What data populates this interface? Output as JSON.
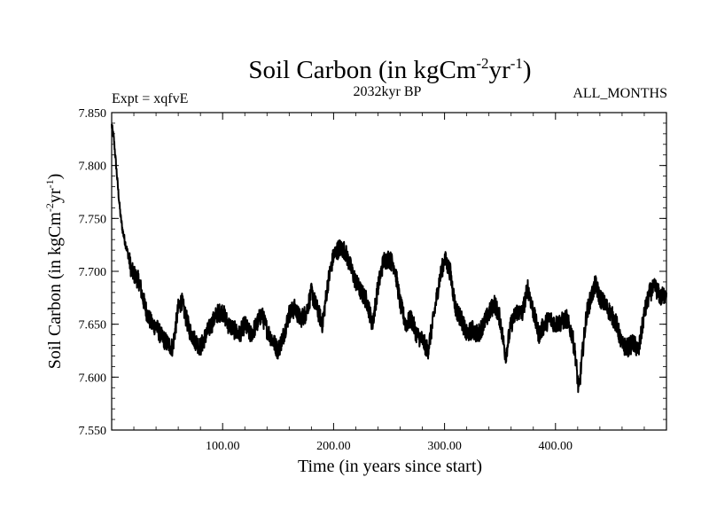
{
  "chart_data": {
    "type": "line",
    "title_main": "Soil Carbon (in kgCm",
    "title_exp1": "-2",
    "title_mid": "yr",
    "title_exp2": "-1",
    "title_close": ")",
    "subtitle_left": "Expt = xqfvE",
    "subtitle_center": "2032kyr BP",
    "subtitle_right": "ALL_MONTHS",
    "xlabel": "Time (in years since start)",
    "ylabel_main": "Soil Carbon (in kgCm",
    "ylabel_exp1": "-2",
    "ylabel_mid": "yr",
    "ylabel_exp2": "-1",
    "ylabel_close": ")",
    "xlim": [
      0,
      500
    ],
    "ylim": [
      7.55,
      7.85
    ],
    "xticks": [
      {
        "value": 100,
        "label": "100.00"
      },
      {
        "value": 200,
        "label": "200.00"
      },
      {
        "value": 300,
        "label": "300.00"
      },
      {
        "value": 400,
        "label": "400.00"
      }
    ],
    "yticks": [
      {
        "value": 7.55,
        "label": "7.550"
      },
      {
        "value": 7.6,
        "label": "7.600"
      },
      {
        "value": 7.65,
        "label": "7.650"
      },
      {
        "value": 7.7,
        "label": "7.700"
      },
      {
        "value": 7.75,
        "label": "7.750"
      },
      {
        "value": 7.8,
        "label": "7.800"
      },
      {
        "value": 7.85,
        "label": "7.850"
      }
    ],
    "series": [
      {
        "name": "Soil Carbon",
        "x": [
          0,
          2,
          4,
          6,
          8,
          10,
          12,
          15,
          18,
          21,
          25,
          28,
          32,
          36,
          40,
          45,
          50,
          55,
          60,
          63,
          66,
          70,
          75,
          80,
          85,
          90,
          95,
          100,
          105,
          110,
          115,
          120,
          125,
          130,
          135,
          140,
          145,
          150,
          155,
          160,
          165,
          170,
          175,
          180,
          185,
          190,
          195,
          200,
          205,
          210,
          215,
          220,
          225,
          230,
          235,
          240,
          245,
          250,
          255,
          260,
          265,
          270,
          275,
          280,
          285,
          290,
          295,
          300,
          305,
          310,
          315,
          320,
          325,
          330,
          335,
          340,
          345,
          350,
          355,
          360,
          365,
          370,
          375,
          380,
          385,
          390,
          395,
          400,
          405,
          410,
          415,
          418,
          421,
          424,
          428,
          432,
          436,
          440,
          445,
          450,
          455,
          460,
          465,
          470,
          475,
          480,
          485,
          490,
          495,
          500
        ],
        "values": [
          7.838,
          7.825,
          7.8,
          7.775,
          7.752,
          7.738,
          7.728,
          7.715,
          7.7,
          7.696,
          7.69,
          7.675,
          7.66,
          7.65,
          7.648,
          7.638,
          7.632,
          7.628,
          7.665,
          7.672,
          7.66,
          7.645,
          7.635,
          7.628,
          7.64,
          7.65,
          7.66,
          7.662,
          7.65,
          7.645,
          7.64,
          7.65,
          7.64,
          7.648,
          7.66,
          7.645,
          7.635,
          7.625,
          7.64,
          7.66,
          7.665,
          7.655,
          7.66,
          7.68,
          7.665,
          7.65,
          7.69,
          7.715,
          7.722,
          7.72,
          7.705,
          7.69,
          7.68,
          7.672,
          7.65,
          7.685,
          7.71,
          7.712,
          7.705,
          7.67,
          7.65,
          7.655,
          7.64,
          7.635,
          7.625,
          7.655,
          7.69,
          7.712,
          7.7,
          7.665,
          7.655,
          7.64,
          7.645,
          7.64,
          7.65,
          7.66,
          7.67,
          7.655,
          7.62,
          7.65,
          7.662,
          7.66,
          7.685,
          7.662,
          7.64,
          7.65,
          7.655,
          7.65,
          7.652,
          7.655,
          7.64,
          7.62,
          7.585,
          7.62,
          7.66,
          7.675,
          7.688,
          7.675,
          7.668,
          7.66,
          7.65,
          7.63,
          7.628,
          7.632,
          7.625,
          7.66,
          7.68,
          7.685,
          7.675,
          7.68
        ]
      }
    ]
  }
}
